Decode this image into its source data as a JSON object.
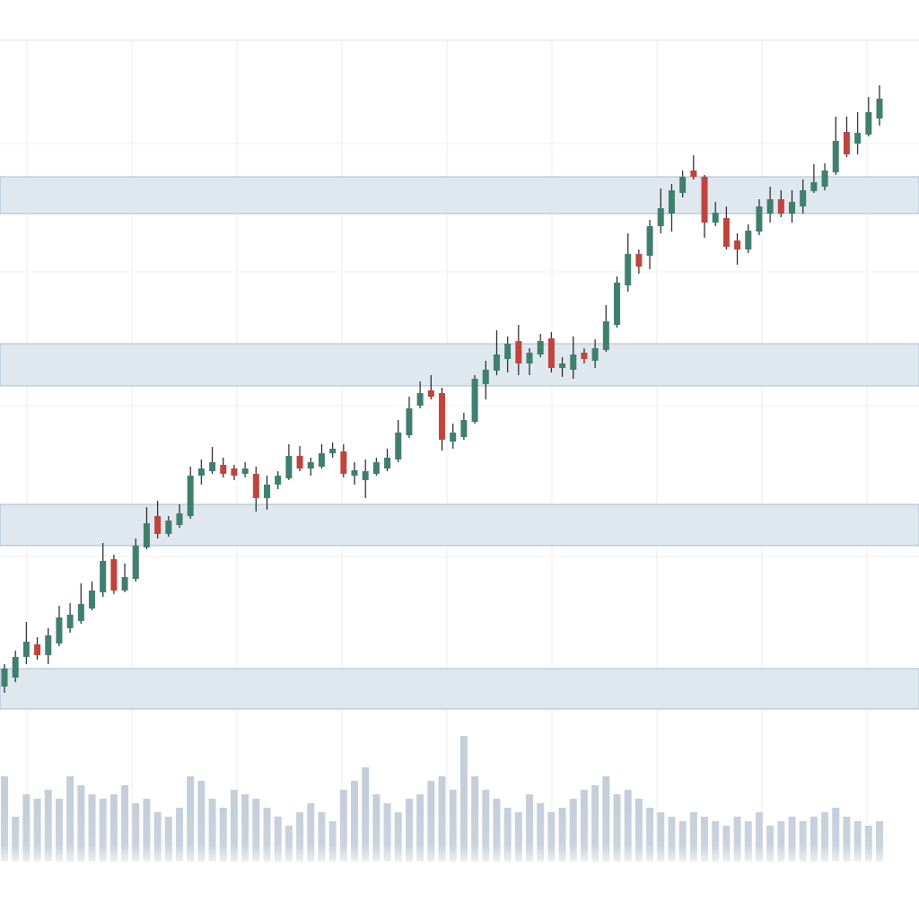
{
  "chart_data": {
    "type": "candlestick",
    "up_color": "#3f7f6e",
    "down_color": "#c0433e",
    "zone_color": "#dfe7ef",
    "volume_color": "#c5cfda",
    "ylim": [
      0,
      780
    ],
    "volume_ylim": [
      0,
      150
    ],
    "zones": [
      [
        582,
        623
      ],
      [
        390,
        437
      ],
      [
        212,
        258
      ],
      [
        30,
        75
      ]
    ],
    "open": [
      55,
      65,
      88,
      102,
      90,
      103,
      120,
      128,
      142,
      160,
      197,
      162,
      175,
      210,
      245,
      225,
      235,
      245,
      290,
      295,
      302,
      298,
      292,
      292,
      265,
      280,
      287,
      312,
      298,
      300,
      315,
      317,
      290,
      285,
      292,
      298,
      308,
      335,
      368,
      385,
      382,
      328,
      333,
      350,
      392,
      407,
      420,
      440,
      415,
      425,
      443,
      410,
      408,
      427,
      418,
      430,
      458,
      502,
      537,
      535,
      568,
      582,
      605,
      630,
      623,
      572,
      577,
      552,
      542,
      562,
      582,
      598,
      582,
      590,
      607,
      612,
      628,
      673,
      660,
      670,
      688
    ],
    "high": [
      80,
      95,
      127,
      110,
      120,
      145,
      148,
      170,
      172,
      215,
      202,
      192,
      220,
      255,
      262,
      245,
      258,
      300,
      308,
      322,
      310,
      302,
      305,
      300,
      290,
      295,
      325,
      323,
      310,
      325,
      327,
      325,
      305,
      308,
      310,
      320,
      352,
      378,
      395,
      402,
      388,
      348,
      360,
      402,
      418,
      452,
      445,
      458,
      432,
      448,
      450,
      422,
      445,
      432,
      442,
      480,
      512,
      560,
      542,
      575,
      610,
      615,
      630,
      647,
      625,
      595,
      590,
      560,
      570,
      598,
      612,
      608,
      608,
      620,
      637,
      638,
      690,
      690,
      695,
      712,
      725
    ],
    "low": [
      48,
      60,
      80,
      85,
      80,
      100,
      115,
      125,
      140,
      155,
      158,
      160,
      172,
      208,
      220,
      222,
      232,
      242,
      280,
      292,
      288,
      285,
      288,
      250,
      252,
      275,
      285,
      295,
      290,
      298,
      310,
      288,
      280,
      265,
      290,
      295,
      305,
      332,
      365,
      375,
      318,
      320,
      330,
      348,
      375,
      402,
      405,
      402,
      402,
      422,
      405,
      400,
      398,
      415,
      410,
      428,
      455,
      495,
      515,
      520,
      560,
      562,
      600,
      620,
      555,
      568,
      542,
      525,
      538,
      558,
      572,
      578,
      572,
      582,
      605,
      608,
      625,
      645,
      648,
      668,
      680
    ],
    "close": [
      75,
      88,
      105,
      90,
      112,
      132,
      135,
      147,
      162,
      195,
      162,
      177,
      212,
      237,
      225,
      240,
      248,
      290,
      298,
      305,
      292,
      290,
      298,
      265,
      280,
      290,
      312,
      298,
      305,
      315,
      320,
      292,
      296,
      295,
      305,
      310,
      338,
      365,
      382,
      378,
      330,
      338,
      352,
      398,
      408,
      425,
      437,
      415,
      427,
      440,
      410,
      415,
      425,
      420,
      432,
      462,
      505,
      537,
      523,
      568,
      588,
      608,
      623,
      623,
      572,
      583,
      545,
      542,
      563,
      590,
      598,
      582,
      595,
      608,
      617,
      630,
      663,
      648,
      672,
      695,
      710
    ],
    "volume": [
      95,
      50,
      75,
      70,
      80,
      70,
      95,
      85,
      75,
      70,
      75,
      85,
      65,
      70,
      55,
      50,
      60,
      95,
      90,
      70,
      60,
      80,
      75,
      70,
      60,
      50,
      40,
      55,
      65,
      55,
      45,
      80,
      90,
      105,
      75,
      65,
      55,
      70,
      75,
      90,
      95,
      80,
      140,
      95,
      80,
      70,
      60,
      55,
      75,
      65,
      55,
      60,
      70,
      80,
      85,
      95,
      75,
      80,
      70,
      60,
      55,
      50,
      45,
      55,
      50,
      45,
      40,
      50,
      45,
      55,
      40,
      45,
      50,
      45,
      50,
      55,
      60,
      50,
      45,
      40,
      45
    ]
  }
}
